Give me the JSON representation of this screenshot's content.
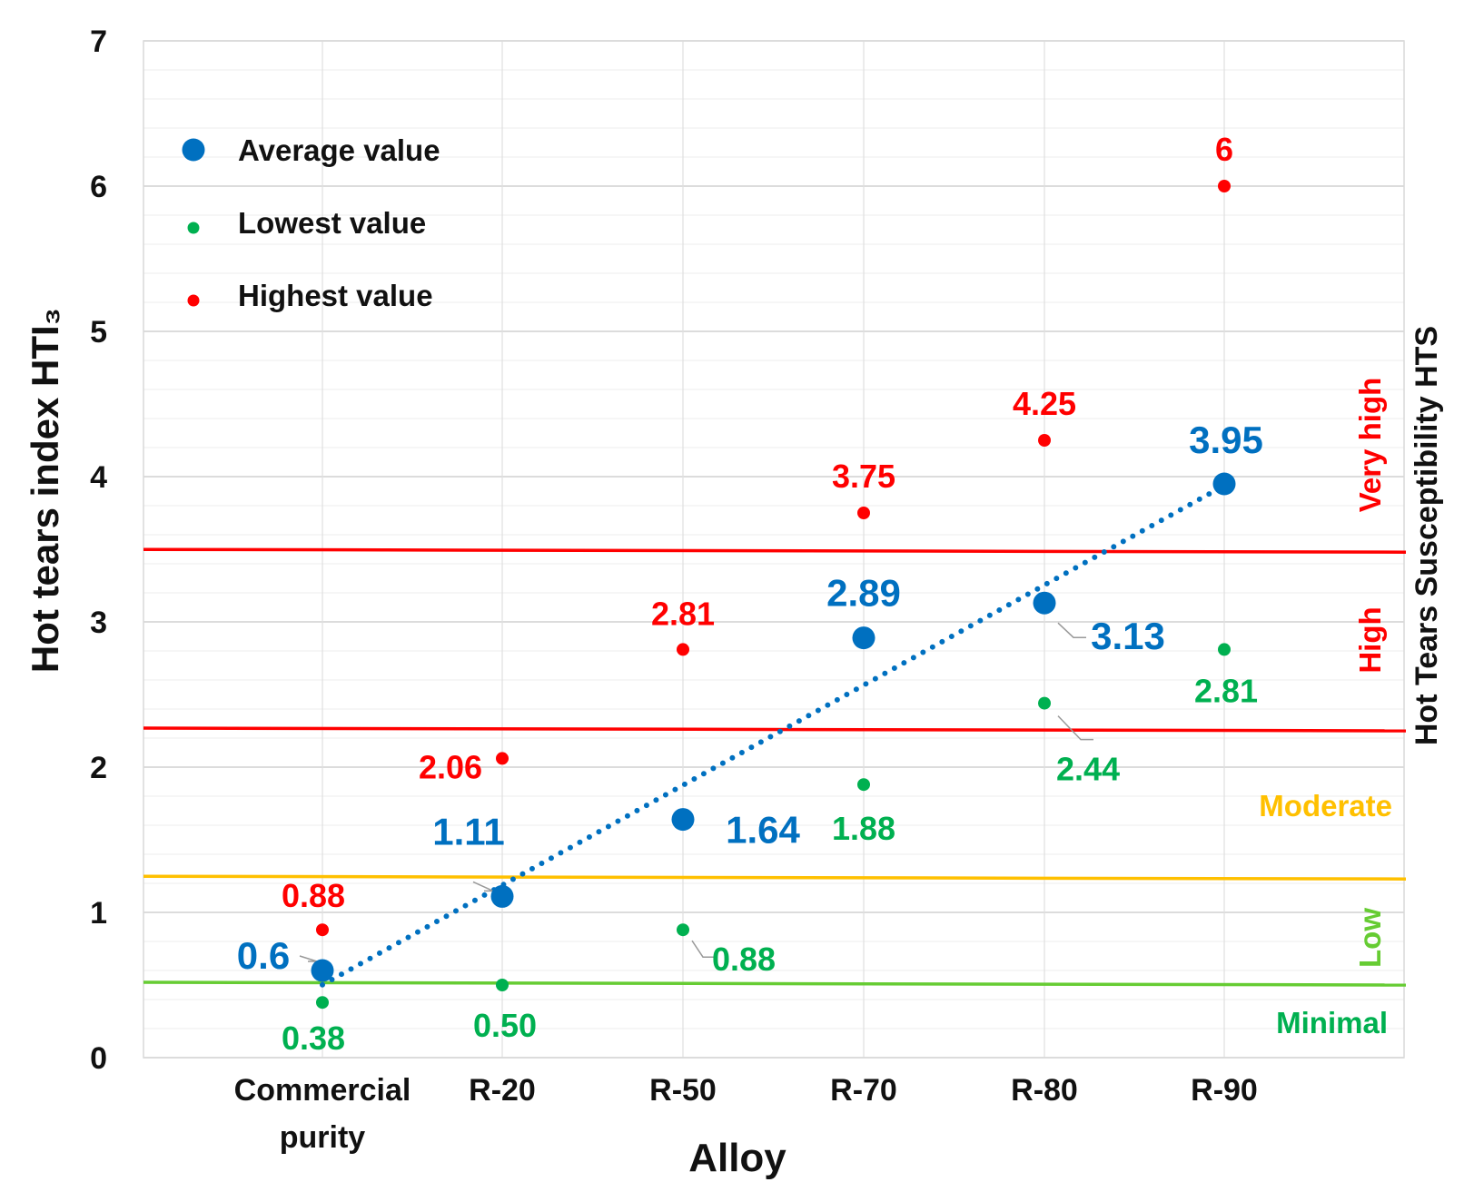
{
  "chart_data": {
    "type": "scatter",
    "categories": [
      "Commercial purity",
      "R-20",
      "R-50",
      "R-70",
      "R-80",
      "R-90"
    ],
    "category_lines": [
      [
        "Commercial",
        "purity"
      ],
      [
        "R-20"
      ],
      [
        "R-50"
      ],
      [
        "R-70"
      ],
      [
        "R-80"
      ],
      [
        "R-90"
      ]
    ],
    "xlabel": "Alloy",
    "ylabel": "Hot tears index  HTI₃",
    "y2label": "Hot Tears Susceptibility HTS",
    "ylim": [
      0,
      7
    ],
    "yticks": [
      0,
      1,
      2,
      3,
      4,
      5,
      6,
      7
    ],
    "grid": true,
    "legend_position": "top-left",
    "series": [
      {
        "name": "Average value",
        "color": "#0070c0",
        "values": [
          0.6,
          1.11,
          1.64,
          2.89,
          3.13,
          3.95
        ],
        "labels": [
          "0.6",
          "1.11",
          "1.64",
          "2.89",
          "3.13",
          "3.95"
        ],
        "trendline": "linear-dotted"
      },
      {
        "name": "Lowest value",
        "color": "#00b050",
        "values": [
          0.38,
          0.5,
          0.88,
          1.88,
          2.44,
          2.81
        ],
        "labels": [
          "0.38",
          "0.50",
          "0.88",
          "1.88",
          "2.44",
          "2.81"
        ]
      },
      {
        "name": "Highest value",
        "color": "#ff0000",
        "values": [
          0.88,
          2.06,
          2.81,
          3.75,
          4.25,
          6
        ],
        "labels": [
          "0.88",
          "2.06",
          "2.81",
          "3.75",
          "4.25",
          "6"
        ]
      }
    ],
    "thresholds": [
      {
        "value": 0.5,
        "color": "#66cc33"
      },
      {
        "value": 1.23,
        "color": "#ffc000"
      },
      {
        "value": 2.25,
        "color": "#ff0000"
      },
      {
        "value": 3.48,
        "color": "#ff0000"
      }
    ],
    "zones": [
      {
        "label": "Minimal",
        "color": "#00b050"
      },
      {
        "label": "Low",
        "color": "#66cc33"
      },
      {
        "label": "Moderate",
        "color": "#ffc000"
      },
      {
        "label": "High",
        "color": "#ff0000"
      },
      {
        "label": "Very high",
        "color": "#ff0000"
      }
    ]
  }
}
